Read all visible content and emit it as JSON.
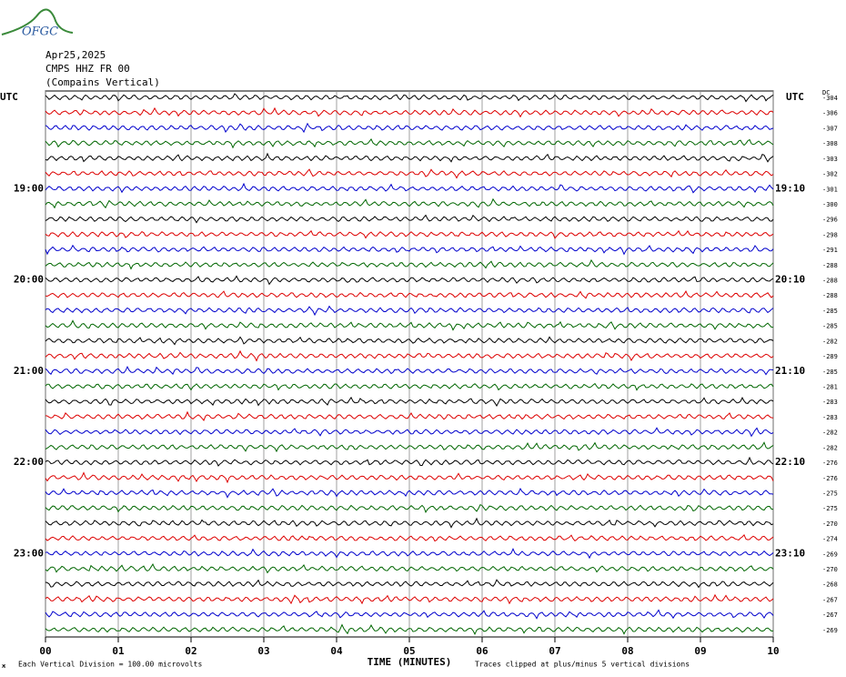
{
  "header": {
    "logo": "OFGC",
    "date": "Apr25,2025",
    "station": "CMPS HHZ FR 00",
    "description": "(Compains Vertical)"
  },
  "left_axis": {
    "title": "UTC",
    "labels": [
      "19:00",
      "20:00",
      "21:00",
      "22:00",
      "23:00"
    ]
  },
  "right_axis": {
    "title": "UTC",
    "labels": [
      "19:10",
      "20:10",
      "21:10",
      "22:10",
      "23:10"
    ]
  },
  "dc_label": "DC",
  "dc_offsets": [
    -304,
    -306,
    -307,
    -308,
    -303,
    -302,
    -301,
    -300,
    -296,
    -298,
    -291,
    -288,
    -288,
    -288,
    -285,
    -285,
    -282,
    -289,
    -285,
    -281,
    -283,
    -283,
    -282,
    -282,
    -276,
    -276,
    -275,
    -275,
    -270,
    -274,
    -269,
    -270,
    -268,
    -267,
    -267,
    -269
  ],
  "x_axis": {
    "ticks": [
      "00",
      "01",
      "02",
      "03",
      "04",
      "05",
      "06",
      "07",
      "08",
      "09",
      "10"
    ],
    "title": "TIME (MINUTES)"
  },
  "footer": {
    "mark": "ж",
    "scale": "Each Vertical Division =  100.00 microvolts",
    "clipping": "Traces clipped at plus/minus 5 vertical divisions"
  }
}
